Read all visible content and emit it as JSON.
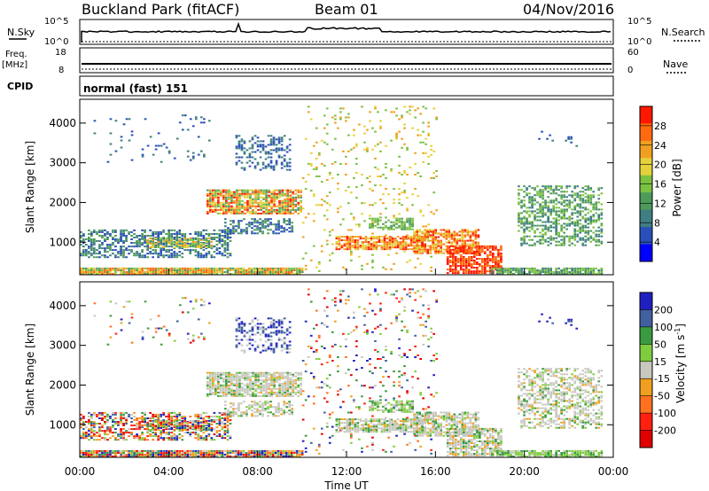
{
  "header": {
    "station": "Buckland Park (fitACF)",
    "beam": "Beam 01",
    "date": "04/Nov/2016"
  },
  "top_panels": {
    "nsky": {
      "label": "N.Sky",
      "tick_top": "10^5",
      "tick_bottom": "10^0"
    },
    "nsearch": {
      "label": "N.Search",
      "tick_top": "10^5",
      "tick_bottom": "10^0"
    },
    "freq": {
      "label_line1": "Freq.",
      "label_line2": "[MHz]",
      "tick_top": "18",
      "tick_bottom": "8"
    },
    "nave": {
      "label": "Nave",
      "tick_top": "60",
      "tick_bottom": "0"
    },
    "cpid": {
      "label": "CPID",
      "value": "normal (fast) 151"
    }
  },
  "chart_data": [
    {
      "type": "heatmap",
      "name": "power",
      "ylabel": "Slant Range [km]",
      "ylim": [
        180,
        4600
      ],
      "yticks": [
        "1000",
        "2000",
        "3000",
        "4000"
      ],
      "xlim": [
        0,
        24
      ],
      "colorbar": {
        "label": "Power [dB]",
        "ticks": [
          "4",
          "8",
          "12",
          "16",
          "20",
          "24",
          "28"
        ],
        "colors": [
          "#0000ff",
          "#2a4fb8",
          "#3f7e82",
          "#4e9a5b",
          "#7cc142",
          "#e5d23b",
          "#f0a020",
          "#ff6a10",
          "#ff1800"
        ]
      }
    },
    {
      "type": "heatmap",
      "name": "velocity",
      "xlabel": "Time UT",
      "ylabel": "Slant Range [km]",
      "ylim": [
        180,
        4600
      ],
      "yticks": [
        "1000",
        "2000",
        "3000",
        "4000"
      ],
      "xlim": [
        0,
        24
      ],
      "xticks": [
        "00:00",
        "04:00",
        "08:00",
        "12:00",
        "16:00",
        "20:00",
        "00:00"
      ],
      "colorbar": {
        "label": "Velocity [m s-1]",
        "label_main": "Velocity [m s",
        "label_exp": "-1",
        "label_close": "]",
        "ticks": [
          "200",
          "100",
          "50",
          "15",
          "-15",
          "-50",
          "-100",
          "-200"
        ],
        "colors": [
          "#2020c0",
          "#4060a0",
          "#3a9a40",
          "#80cc40",
          "#c8c8c0",
          "#f0a020",
          "#ff7020",
          "#ff2010",
          "#e00000"
        ]
      }
    }
  ]
}
